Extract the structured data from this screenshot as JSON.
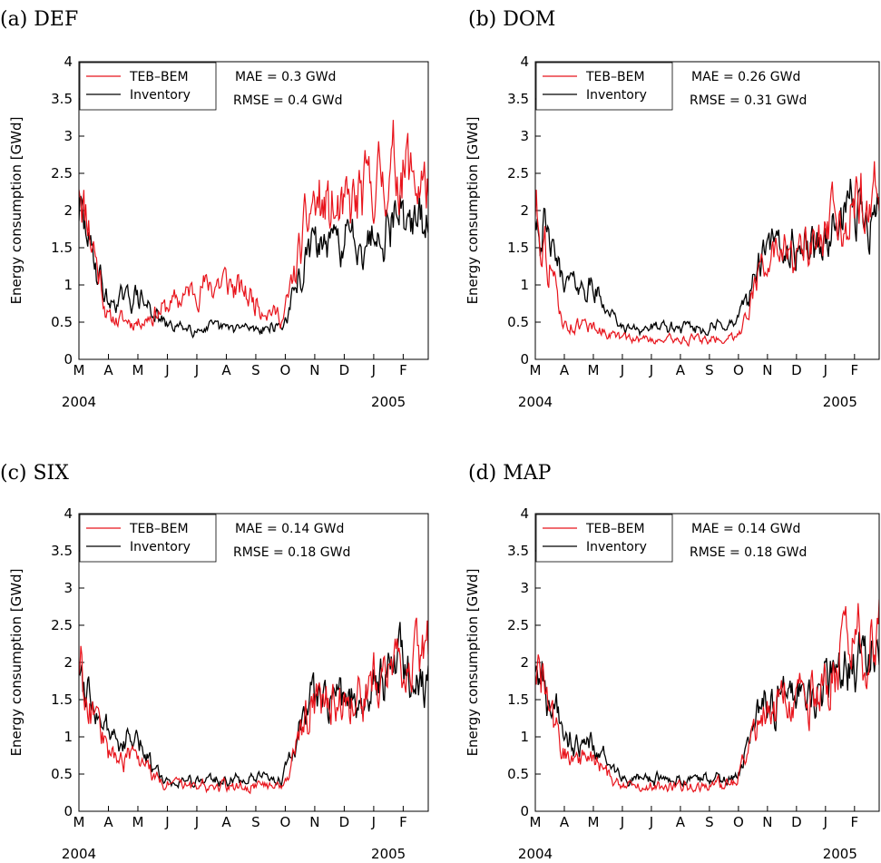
{
  "chart_data": [
    {
      "type": "line",
      "title": "(a) DEF",
      "ylabel": "Energy consumption [GWd]",
      "ylim": [
        0,
        4
      ],
      "yticks": [
        "0",
        "0.5",
        "1",
        "1.5",
        "2",
        "2.5",
        "3",
        "3.5",
        "4"
      ],
      "x_tick_labels": [
        "M",
        "A",
        "M",
        "J",
        "J",
        "A",
        "S",
        "O",
        "N",
        "D",
        "J",
        "F"
      ],
      "year_labels": [
        "2004",
        "2005"
      ],
      "legend_position": "top-left",
      "stats": {
        "mae": "MAE   = 0.3 GWd",
        "rmse": "RMSE = 0.4 GWd"
      },
      "x": [
        "Mar 2004",
        "Apr 2004",
        "May 2004",
        "Jun 2004",
        "Jul 2004",
        "Aug 2004",
        "Sep 2004",
        "Oct 2004",
        "Nov 2004",
        "Dec 2004",
        "Jan 2005",
        "Feb 2005",
        "end Feb 2005"
      ],
      "series": [
        {
          "name": "TEB–BEM",
          "color": "#e8141c",
          "values": [
            2.5,
            0.55,
            0.5,
            0.7,
            0.95,
            1.05,
            0.8,
            0.55,
            2.1,
            1.9,
            2.3,
            2.6,
            2.3
          ]
        },
        {
          "name": "Inventory",
          "color": "#000000",
          "values": [
            2.0,
            0.75,
            0.85,
            0.45,
            0.42,
            0.42,
            0.42,
            0.45,
            1.55,
            1.55,
            1.7,
            2.0,
            1.7
          ]
        }
      ]
    },
    {
      "type": "line",
      "title": "(b) DOM",
      "ylabel": "Energy consumption [GWd]",
      "ylim": [
        0,
        4
      ],
      "yticks": [
        "0",
        "0.5",
        "1",
        "1.5",
        "2",
        "2.5",
        "3",
        "3.5",
        "4"
      ],
      "x_tick_labels": [
        "M",
        "A",
        "M",
        "J",
        "J",
        "A",
        "S",
        "O",
        "N",
        "D",
        "J",
        "F"
      ],
      "year_labels": [
        "2004",
        "2005"
      ],
      "legend_position": "top-left",
      "stats": {
        "mae": "MAE   = 0.26 GWd",
        "rmse": "RMSE = 0.31 GWd"
      },
      "x": [
        "Mar 2004",
        "Apr 2004",
        "May 2004",
        "Jun 2004",
        "Jul 2004",
        "Aug 2004",
        "Sep 2004",
        "Oct 2004",
        "Nov 2004",
        "Dec 2004",
        "Jan 2005",
        "Feb 2005",
        "end Feb 2005"
      ],
      "series": [
        {
          "name": "TEB–BEM",
          "color": "#e8141c",
          "values": [
            2.1,
            0.45,
            0.45,
            0.28,
            0.27,
            0.27,
            0.27,
            0.3,
            1.35,
            1.35,
            1.5,
            2.2,
            2.3
          ]
        },
        {
          "name": "Inventory",
          "color": "#000000",
          "values": [
            2.0,
            1.05,
            0.95,
            0.42,
            0.42,
            0.42,
            0.42,
            0.48,
            1.45,
            1.5,
            1.55,
            2.0,
            2.0
          ]
        }
      ]
    },
    {
      "type": "line",
      "title": "(c) SIX",
      "ylabel": "Energy consumption [GWd]",
      "ylim": [
        0,
        4
      ],
      "yticks": [
        "0",
        "0.5",
        "1",
        "1.5",
        "2",
        "2.5",
        "3",
        "3.5",
        "4"
      ],
      "x_tick_labels": [
        "M",
        "A",
        "M",
        "J",
        "J",
        "A",
        "S",
        "O",
        "N",
        "D",
        "J",
        "F"
      ],
      "year_labels": [
        "2004",
        "2005"
      ],
      "legend_position": "top-left",
      "stats": {
        "mae": "MAE   = 0.14 GWd",
        "rmse": "RMSE = 0.18 GWd"
      },
      "x": [
        "Mar 2004",
        "Apr 2004",
        "May 2004",
        "Jun 2004",
        "Jul 2004",
        "Aug 2004",
        "Sep 2004",
        "Oct 2004",
        "Nov 2004",
        "Dec 2004",
        "Jan 2005",
        "Feb 2005",
        "end Feb 2005"
      ],
      "series": [
        {
          "name": "TEB–BEM",
          "color": "#e8141c",
          "values": [
            2.0,
            0.75,
            0.7,
            0.35,
            0.34,
            0.34,
            0.34,
            0.4,
            1.45,
            1.45,
            1.6,
            2.2,
            2.1
          ]
        },
        {
          "name": "Inventory",
          "color": "#000000",
          "values": [
            2.0,
            1.0,
            0.9,
            0.42,
            0.42,
            0.42,
            0.42,
            0.45,
            1.5,
            1.5,
            1.6,
            2.1,
            1.7
          ]
        }
      ]
    },
    {
      "type": "line",
      "title": "(d) MAP",
      "ylabel": "Energy consumption [GWd]",
      "ylim": [
        0,
        4
      ],
      "yticks": [
        "0",
        "0.5",
        "1",
        "1.5",
        "2",
        "2.5",
        "3",
        "3.5",
        "4"
      ],
      "x_tick_labels": [
        "M",
        "A",
        "M",
        "J",
        "J",
        "A",
        "S",
        "O",
        "N",
        "D",
        "J",
        "F"
      ],
      "year_labels": [
        "2004",
        "2005"
      ],
      "legend_position": "top-left",
      "stats": {
        "mae": "MAE   = 0.14 GWd",
        "rmse": "RMSE = 0.18 GWd"
      },
      "x": [
        "Mar 2004",
        "Apr 2004",
        "May 2004",
        "Jun 2004",
        "Jul 2004",
        "Aug 2004",
        "Sep 2004",
        "Oct 2004",
        "Nov 2004",
        "Dec 2004",
        "Jan 2005",
        "Feb 2005",
        "end Feb 2005"
      ],
      "series": [
        {
          "name": "TEB–BEM",
          "color": "#e8141c",
          "values": [
            2.0,
            0.75,
            0.7,
            0.35,
            0.34,
            0.34,
            0.34,
            0.4,
            1.45,
            1.45,
            1.6,
            2.2,
            2.3
          ]
        },
        {
          "name": "Inventory",
          "color": "#000000",
          "values": [
            2.0,
            1.0,
            0.9,
            0.42,
            0.42,
            0.42,
            0.42,
            0.45,
            1.5,
            1.5,
            1.6,
            2.1,
            2.0
          ]
        }
      ]
    }
  ]
}
